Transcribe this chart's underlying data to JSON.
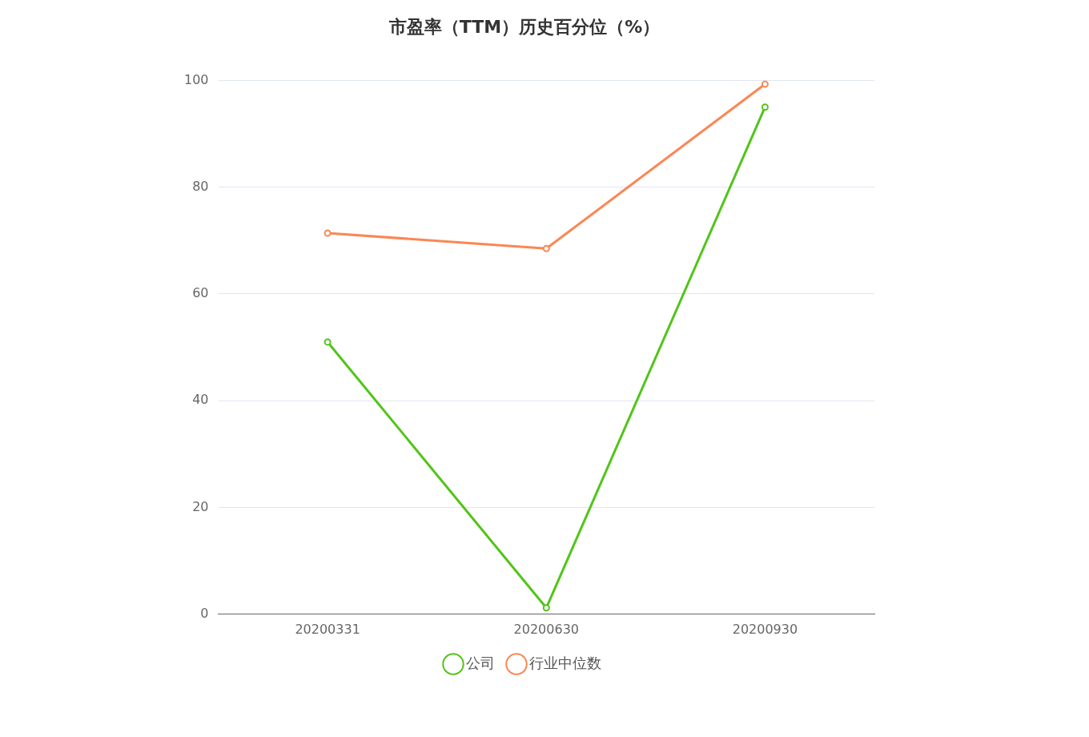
{
  "chart_data": {
    "type": "line",
    "title": "市盈率（TTM）历史百分位（%）",
    "categories": [
      "20200331",
      "20200630",
      "20200930"
    ],
    "series": [
      {
        "name": "公司",
        "color": "#52c41a",
        "values": [
          51.0,
          1.2,
          95.0
        ]
      },
      {
        "name": "行业中位数",
        "color": "#fa8753",
        "values": [
          71.4,
          68.5,
          99.3
        ]
      }
    ],
    "ylim": [
      0,
      100
    ],
    "yticks": [
      0,
      20,
      40,
      60,
      80,
      100
    ],
    "grid": "y",
    "legend": "bottom",
    "marker": "circle",
    "line_style": "solid"
  }
}
